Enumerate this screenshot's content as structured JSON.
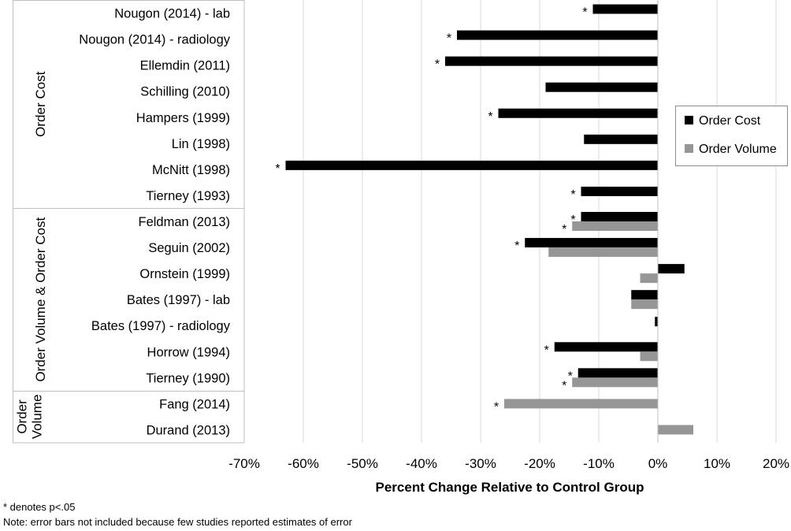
{
  "chart_data": {
    "type": "bar",
    "orientation": "horizontal",
    "xlabel": "Percent Change Relative to Control Group",
    "xlim": [
      -70,
      20
    ],
    "xticks": [
      "-70%",
      "-60%",
      "-50%",
      "-40%",
      "-30%",
      "-20%",
      "-10%",
      "0%",
      "10%",
      "20%"
    ],
    "grid": "vertical",
    "legend_position": "right",
    "series": [
      {
        "name": "Order Cost",
        "color": "#000000"
      },
      {
        "name": "Order Volume",
        "color": "#969696"
      }
    ],
    "groups": [
      {
        "label": "Order Cost",
        "label_lines": [
          "Order Cost"
        ],
        "rows": [
          0,
          7
        ]
      },
      {
        "label": "Order Volume & Order Cost",
        "label_lines": [
          "Order Volume & Order Cost"
        ],
        "rows": [
          8,
          14
        ]
      },
      {
        "label": "Order Volume",
        "label_lines": [
          "Order",
          "Volume"
        ],
        "rows": [
          15,
          16
        ]
      }
    ],
    "categories": [
      {
        "label": "Nougon (2014) - lab",
        "cost": -11,
        "cost_sig": true
      },
      {
        "label": "Nougon (2014) - radiology",
        "cost": -34,
        "cost_sig": true
      },
      {
        "label": "Ellemdin (2011)",
        "cost": -36,
        "cost_sig": true
      },
      {
        "label": "Schilling (2010)",
        "cost": -19
      },
      {
        "label": "Hampers (1999)",
        "cost": -27,
        "cost_sig": true
      },
      {
        "label": "Lin (1998)",
        "cost": -12.5
      },
      {
        "label": "McNitt (1998)",
        "cost": -63,
        "cost_sig": true
      },
      {
        "label": "Tierney (1993)",
        "cost": -13,
        "cost_sig": true
      },
      {
        "label": "Feldman (2013)",
        "cost": -13,
        "cost_sig": true,
        "volume": -14.5,
        "volume_sig": true
      },
      {
        "label": "Seguin (2002)",
        "cost": -22.5,
        "cost_sig": true,
        "volume": -18.5
      },
      {
        "label": "Ornstein (1999)",
        "cost": 4.5,
        "volume": -3
      },
      {
        "label": "Bates (1997) - lab",
        "cost": -4.5,
        "volume": -4.5
      },
      {
        "label": "Bates (1997) - radiology",
        "cost": -0.5
      },
      {
        "label": "Horrow (1994)",
        "cost": -17.5,
        "cost_sig": true,
        "volume": -3
      },
      {
        "label": "Tierney (1990)",
        "cost": -13.5,
        "cost_sig": true,
        "volume": -14.5,
        "volume_sig": true
      },
      {
        "label": "Fang (2014)",
        "volume": -26,
        "volume_sig": true
      },
      {
        "label": "Durand (2013)",
        "volume": 6
      }
    ],
    "significance_marker": "*"
  },
  "footnotes": {
    "significance": "* denotes p<.05",
    "note": "Note: error bars not included because few studies reported estimates of error"
  }
}
